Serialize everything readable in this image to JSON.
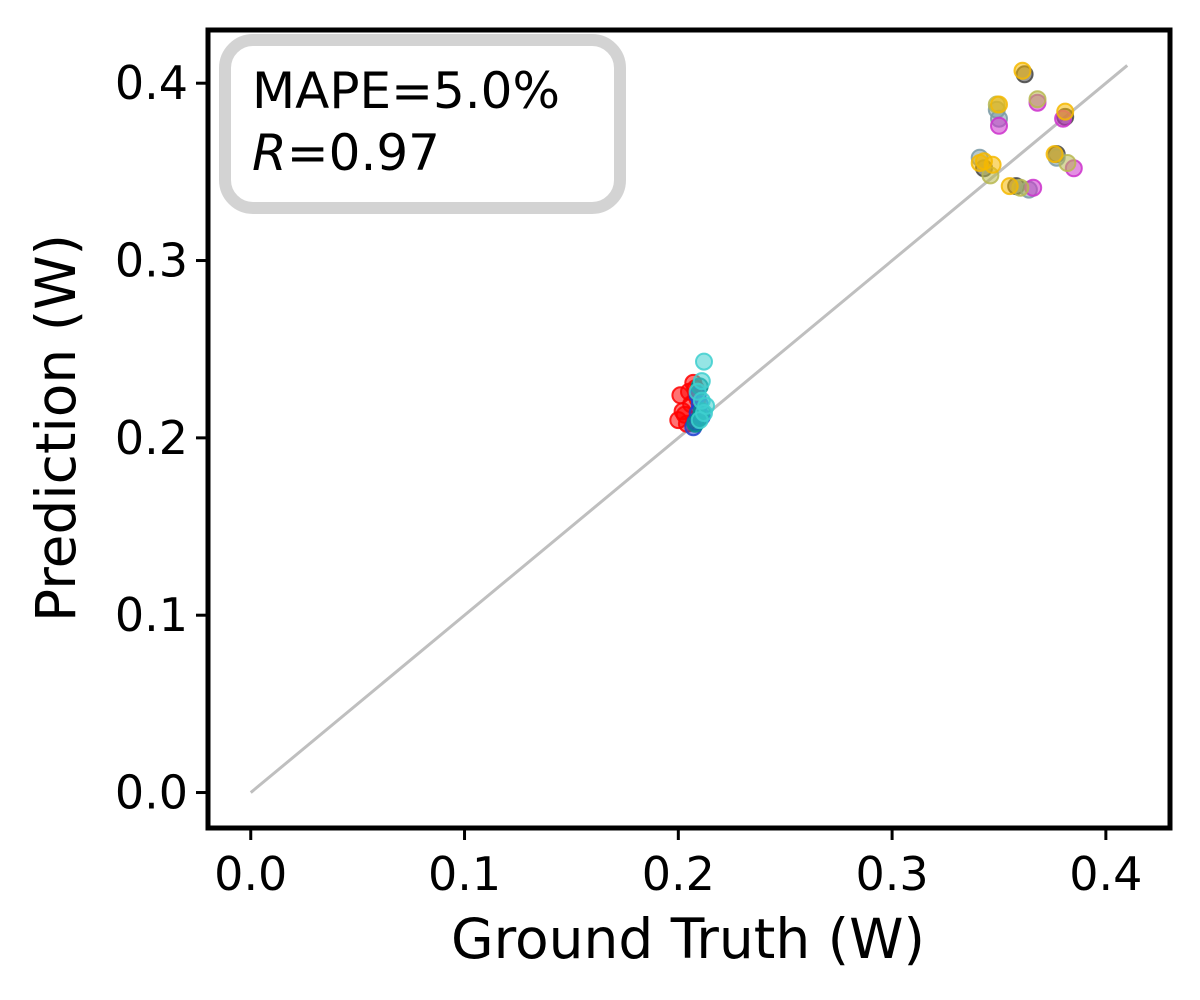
{
  "chart_data": {
    "type": "scatter",
    "xlabel": "Ground Truth (W)",
    "ylabel": "Prediction (W)",
    "xlim": [
      -0.02,
      0.43
    ],
    "ylim": [
      -0.02,
      0.43
    ],
    "xticks": [
      0.0,
      0.1,
      0.2,
      0.3,
      0.4
    ],
    "yticks": [
      0.0,
      0.1,
      0.2,
      0.3,
      0.4
    ],
    "xtick_labels": [
      "0.0",
      "0.1",
      "0.2",
      "0.3",
      "0.4"
    ],
    "ytick_labels": [
      "0.0",
      "0.1",
      "0.2",
      "0.3",
      "0.4"
    ],
    "grid": false,
    "reference_line": {
      "from": [
        0.0,
        0.0
      ],
      "to": [
        0.41,
        0.41
      ],
      "color": "#bfbfbf"
    },
    "annotation": {
      "line1": "MAPE=5.0%",
      "r_symbol": "R",
      "r_value": "=0.97",
      "placement": "top-left"
    },
    "series": [
      {
        "name": "red",
        "color": "#ff0000",
        "points": [
          [
            0.2,
            0.21
          ],
          [
            0.201,
            0.224
          ],
          [
            0.203,
            0.213
          ],
          [
            0.205,
            0.226
          ],
          [
            0.206,
            0.219
          ],
          [
            0.207,
            0.231
          ],
          [
            0.208,
            0.228
          ],
          [
            0.202,
            0.215
          ],
          [
            0.204,
            0.208
          ],
          [
            0.209,
            0.222
          ]
        ]
      },
      {
        "name": "blue",
        "color": "#1f3fd0",
        "points": [
          [
            0.207,
            0.206
          ],
          [
            0.208,
            0.209
          ],
          [
            0.209,
            0.214
          ],
          [
            0.21,
            0.219
          ],
          [
            0.209,
            0.224
          ],
          [
            0.211,
            0.212
          ]
        ]
      },
      {
        "name": "teal",
        "color": "#008b8b",
        "points": [
          [
            0.208,
            0.208
          ],
          [
            0.21,
            0.211
          ],
          [
            0.211,
            0.215
          ],
          [
            0.21,
            0.229
          ]
        ]
      },
      {
        "name": "cyan",
        "color": "#3ecfcf",
        "points": [
          [
            0.212,
            0.243
          ],
          [
            0.211,
            0.232
          ],
          [
            0.213,
            0.218
          ],
          [
            0.212,
            0.214
          ],
          [
            0.21,
            0.21
          ],
          [
            0.211,
            0.221
          ],
          [
            0.209,
            0.226
          ]
        ]
      },
      {
        "name": "dark-gray",
        "color": "#444444",
        "points": [
          [
            0.362,
            0.405
          ],
          [
            0.358,
            0.342
          ],
          [
            0.377,
            0.36
          ],
          [
            0.381,
            0.381
          ],
          [
            0.343,
            0.352
          ]
        ]
      },
      {
        "name": "slate",
        "color": "#7a9aa5",
        "points": [
          [
            0.349,
            0.385
          ],
          [
            0.35,
            0.38
          ],
          [
            0.341,
            0.358
          ],
          [
            0.364,
            0.34
          ],
          [
            0.377,
            0.358
          ]
        ]
      },
      {
        "name": "magenta",
        "color": "#cc33cc",
        "points": [
          [
            0.35,
            0.376
          ],
          [
            0.368,
            0.389
          ],
          [
            0.366,
            0.341
          ],
          [
            0.385,
            0.352
          ],
          [
            0.38,
            0.38
          ]
        ]
      },
      {
        "name": "olive",
        "color": "#b8b850",
        "points": [
          [
            0.368,
            0.391
          ],
          [
            0.349,
            0.388
          ],
          [
            0.36,
            0.341
          ],
          [
            0.346,
            0.348
          ],
          [
            0.382,
            0.355
          ]
        ]
      },
      {
        "name": "gold",
        "color": "#f5b800",
        "points": [
          [
            0.361,
            0.407
          ],
          [
            0.35,
            0.388
          ],
          [
            0.341,
            0.355
          ],
          [
            0.355,
            0.342
          ],
          [
            0.376,
            0.36
          ],
          [
            0.381,
            0.384
          ],
          [
            0.347,
            0.354
          ],
          [
            0.343,
            0.356
          ]
        ]
      }
    ]
  }
}
